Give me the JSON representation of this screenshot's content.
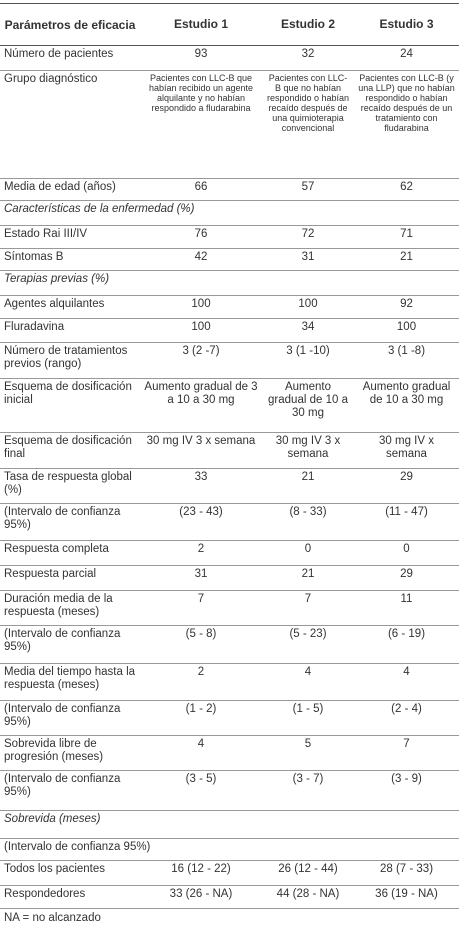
{
  "table": {
    "header": [
      "Parámetros de eficacia",
      "Estudio 1",
      "Estudio 2",
      "Estudio 3"
    ],
    "rows": [
      [
        "Número de pacientes",
        "93",
        "32",
        "24"
      ],
      [
        "Grupo diagnóstico",
        "Pacientes con LLC-B que habían recibido un agente alquilante y no habían respondido a fludarabina",
        "Pacientes con LLC-B que no habían respondido o habían recaído después de una quimioterapia convencional",
        "Pacientes con LLC-B (y una LLP) que no habían respondido o habían recaído después de un tratamiento con fludarabina"
      ],
      [
        "Media de edad (años)",
        "66",
        "57",
        "62"
      ],
      {
        "heading": "Características de la enfermedad (%)"
      },
      [
        "Estado Rai III/IV",
        "76",
        "72",
        "71"
      ],
      [
        "Síntomas B",
        "42",
        "31",
        "21"
      ],
      {
        "heading": "Terapias previas (%)"
      },
      [
        "Agentes alquilantes",
        "100",
        "100",
        "92"
      ],
      [
        "Fluradavina",
        "100",
        "34",
        "100"
      ],
      [
        "Número de tratamientos previos (rango)",
        "3 (2 -7)",
        "3 (1 -10)",
        "3 (1 -8)"
      ],
      [
        "Esquema de dosificación inicial",
        "Aumento gradual de 3 a 10 a 30 mg",
        "Aumento gradual de 10 a 30 mg",
        "Aumento gradual de 10 a 30 mg"
      ],
      [
        "Esquema de dosificación final",
        "30 mg IV 3 x semana",
        "30 mg IV 3 x semana",
        "30 mg IV x semana"
      ],
      [
        "Tasa de respuesta global (%)",
        "33",
        "21",
        "29"
      ],
      [
        "(Intervalo de confianza 95%)",
        "(23 - 43)",
        "(8 - 33)",
        "(11 - 47)"
      ],
      [
        "Respuesta completa",
        "2",
        "0",
        "0"
      ],
      [
        "Respuesta parcial",
        "31",
        "21",
        "29"
      ],
      [
        "Duración media de la respuesta (meses)",
        "7",
        "7",
        "11"
      ],
      [
        "(Intervalo de confianza 95%)",
        "(5 - 8)",
        "(5 - 23)",
        "(6 - 19)"
      ],
      [
        "Media del tiempo hasta la respuesta (meses)",
        "2",
        "4",
        "4"
      ],
      [
        "(Intervalo de confianza 95%)",
        "(1 - 2)",
        "(1 - 5)",
        "(2 - 4)"
      ],
      [
        "Sobrevida libre de progresión (meses)",
        "4",
        "5",
        "7"
      ],
      [
        "(Intervalo de confianza 95%)",
        "(3 - 5)",
        "(3 - 7)",
        "(3 - 9)"
      ],
      {
        "heading": "Sobrevida (meses)"
      },
      {
        "span": "(Intervalo de confianza 95%)"
      },
      [
        "Todos los pacientes",
        "16 (12 - 22)",
        "26 (12 - 44)",
        "28 (7 - 33)"
      ],
      [
        "Respondedores",
        "33 (26 - NA)",
        "44 (28 - NA)",
        "36 (19 - NA)"
      ]
    ]
  },
  "footnote": "NA = no alcanzado"
}
